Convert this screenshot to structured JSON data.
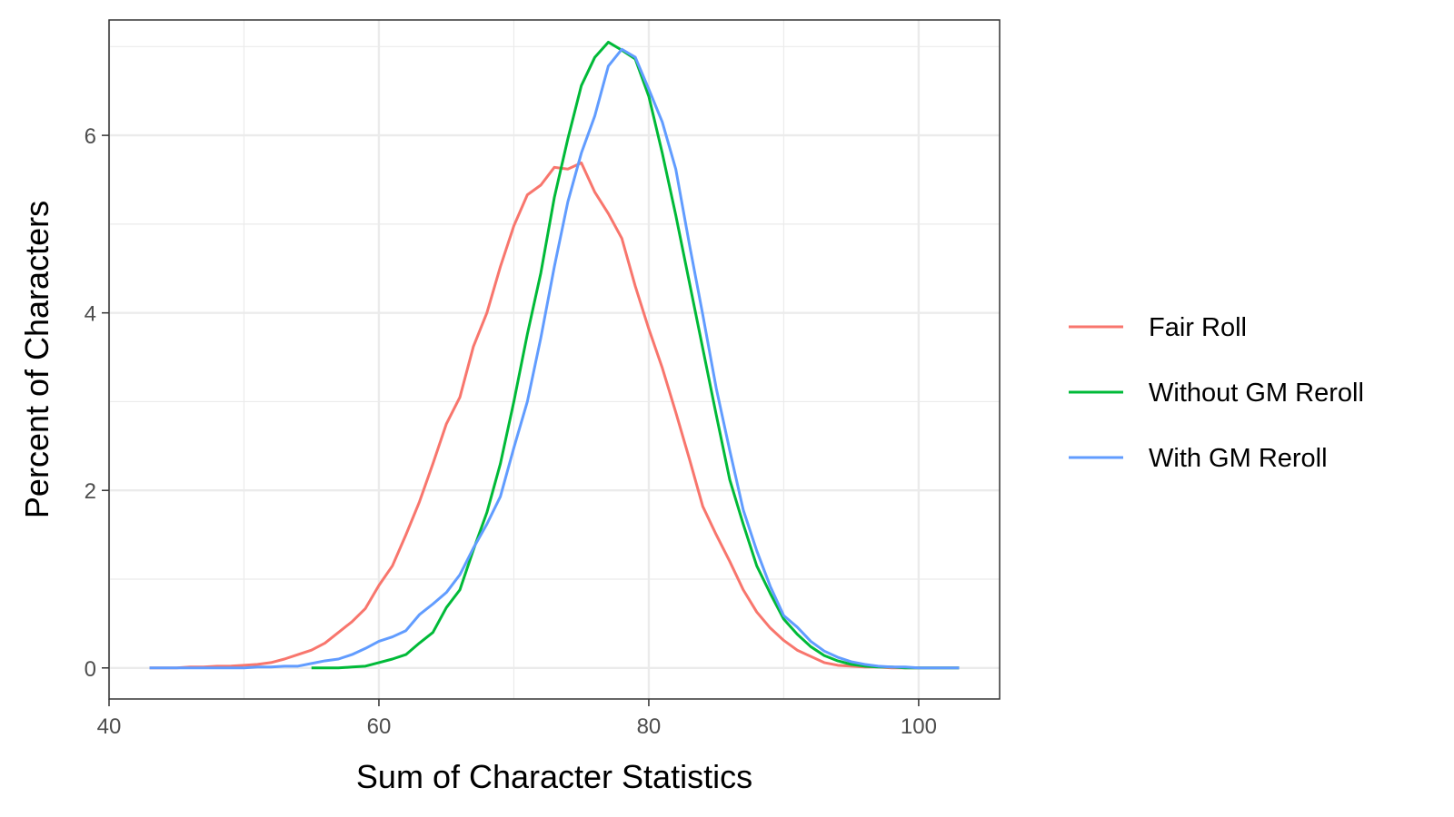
{
  "chart_data": {
    "type": "line",
    "xlabel": "Sum of Character Statistics",
    "ylabel": "Percent of Characters",
    "xlim": [
      40,
      106
    ],
    "ylim": [
      -0.35,
      7.3
    ],
    "x_ticks": [
      40,
      60,
      80,
      100
    ],
    "x_tick_labels": [
      "40",
      "60",
      "80",
      "100"
    ],
    "y_ticks": [
      0,
      2,
      4,
      6
    ],
    "y_tick_labels": [
      "0",
      "2",
      "4",
      "6"
    ],
    "grid": true,
    "legend_position": "right",
    "series": [
      {
        "name": "Fair Roll",
        "color": "#F8766D",
        "x": [
          43,
          44,
          45,
          46,
          47,
          48,
          49,
          50,
          51,
          52,
          53,
          54,
          55,
          56,
          57,
          58,
          59,
          60,
          61,
          62,
          63,
          64,
          65,
          66,
          67,
          68,
          69,
          70,
          71,
          72,
          73,
          74,
          75,
          76,
          77,
          78,
          79,
          80,
          81,
          82,
          83,
          84,
          85,
          86,
          87,
          88,
          89,
          90,
          91,
          92,
          93,
          94,
          95,
          96,
          97,
          98,
          99,
          100,
          101,
          102,
          103
        ],
        "values": [
          0,
          0,
          0,
          0.01,
          0.01,
          0.02,
          0.02,
          0.03,
          0.04,
          0.06,
          0.1,
          0.15,
          0.2,
          0.28,
          0.4,
          0.52,
          0.67,
          0.93,
          1.15,
          1.5,
          1.87,
          2.3,
          2.75,
          3.05,
          3.62,
          4.0,
          4.52,
          4.98,
          5.33,
          5.44,
          5.64,
          5.62,
          5.69,
          5.36,
          5.12,
          4.84,
          4.3,
          3.82,
          3.38,
          2.88,
          2.36,
          1.82,
          1.5,
          1.2,
          0.88,
          0.63,
          0.45,
          0.31,
          0.2,
          0.13,
          0.06,
          0.03,
          0.02,
          0.01,
          0.01,
          0,
          0,
          0,
          0,
          0,
          0
        ]
      },
      {
        "name": "Without GM Reroll",
        "color": "#00BA38",
        "x": [
          55,
          56,
          57,
          58,
          59,
          60,
          61,
          62,
          63,
          64,
          65,
          66,
          67,
          68,
          69,
          70,
          71,
          72,
          73,
          74,
          75,
          76,
          77,
          78,
          79,
          80,
          81,
          82,
          83,
          84,
          85,
          86,
          87,
          88,
          89,
          90,
          91,
          92,
          93,
          94,
          95,
          96,
          97,
          98,
          99,
          100,
          101,
          102,
          103
        ],
        "values": [
          0,
          0,
          0,
          0.01,
          0.02,
          0.06,
          0.1,
          0.15,
          0.28,
          0.4,
          0.68,
          0.88,
          1.33,
          1.75,
          2.3,
          3.0,
          3.76,
          4.45,
          5.3,
          5.96,
          6.56,
          6.88,
          7.05,
          6.96,
          6.86,
          6.44,
          5.8,
          5.1,
          4.35,
          3.6,
          2.85,
          2.12,
          1.62,
          1.15,
          0.84,
          0.55,
          0.38,
          0.24,
          0.14,
          0.08,
          0.04,
          0.02,
          0.01,
          0.01,
          0,
          0,
          0,
          0,
          0
        ]
      },
      {
        "name": "With GM Reroll",
        "color": "#619CFF",
        "x": [
          43,
          44,
          45,
          46,
          47,
          48,
          49,
          50,
          51,
          52,
          53,
          54,
          55,
          56,
          57,
          58,
          59,
          60,
          61,
          62,
          63,
          64,
          65,
          66,
          67,
          68,
          69,
          70,
          71,
          72,
          73,
          74,
          75,
          76,
          77,
          78,
          79,
          80,
          81,
          82,
          83,
          84,
          85,
          86,
          87,
          88,
          89,
          90,
          91,
          92,
          93,
          94,
          95,
          96,
          97,
          98,
          99,
          100,
          101,
          102,
          103
        ],
        "values": [
          0,
          0,
          0,
          0,
          0,
          0,
          0,
          0,
          0.01,
          0.01,
          0.02,
          0.02,
          0.05,
          0.08,
          0.1,
          0.15,
          0.22,
          0.3,
          0.35,
          0.42,
          0.6,
          0.72,
          0.85,
          1.05,
          1.35,
          1.62,
          1.93,
          2.48,
          3.0,
          3.72,
          4.52,
          5.25,
          5.8,
          6.22,
          6.78,
          6.97,
          6.88,
          6.52,
          6.15,
          5.62,
          4.78,
          3.98,
          3.15,
          2.45,
          1.78,
          1.32,
          0.92,
          0.59,
          0.46,
          0.3,
          0.19,
          0.12,
          0.07,
          0.04,
          0.02,
          0.01,
          0.01,
          0,
          0,
          0,
          0
        ]
      }
    ]
  }
}
